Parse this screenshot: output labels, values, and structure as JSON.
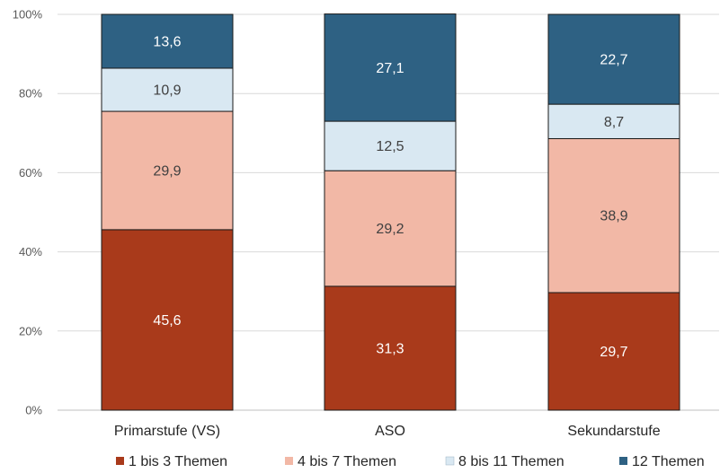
{
  "chart_data": {
    "type": "bar",
    "stacked": true,
    "normalized_percent": true,
    "categories": [
      "Primarstufe (VS)",
      "ASO",
      "Sekundarstufe"
    ],
    "series": [
      {
        "name": "1 bis 3 Themen",
        "values": [
          45.6,
          31.3,
          29.7
        ],
        "labels": [
          "45,6",
          "31,3",
          "29,7"
        ],
        "color": "#a93a1b",
        "label_color": "#ffffff"
      },
      {
        "name": "4 bis 7 Themen",
        "values": [
          29.9,
          29.2,
          38.9
        ],
        "labels": [
          "29,9",
          "29,2",
          "38,9"
        ],
        "color": "#f2b8a6",
        "label_color": "#404040"
      },
      {
        "name": "8 bis 11 Themen",
        "values": [
          10.9,
          12.5,
          8.7
        ],
        "labels": [
          "10,9",
          "12,5",
          "8,7"
        ],
        "color": "#d9e8f2",
        "label_color": "#404040"
      },
      {
        "name": "12 Themen",
        "values": [
          13.6,
          27.1,
          22.7
        ],
        "labels": [
          "13,6",
          "27,1",
          "22,7"
        ],
        "color": "#2e6183",
        "label_color": "#ffffff"
      }
    ],
    "y_ticks": [
      "0%",
      "20%",
      "40%",
      "60%",
      "80%",
      "100%"
    ],
    "ylim": [
      0,
      100
    ],
    "title": "",
    "xlabel": "",
    "ylabel": "",
    "grid": true,
    "gridline_color": "#d9d9d9",
    "bar_outline_color": "#1a1a1a",
    "legend_position": "bottom"
  }
}
